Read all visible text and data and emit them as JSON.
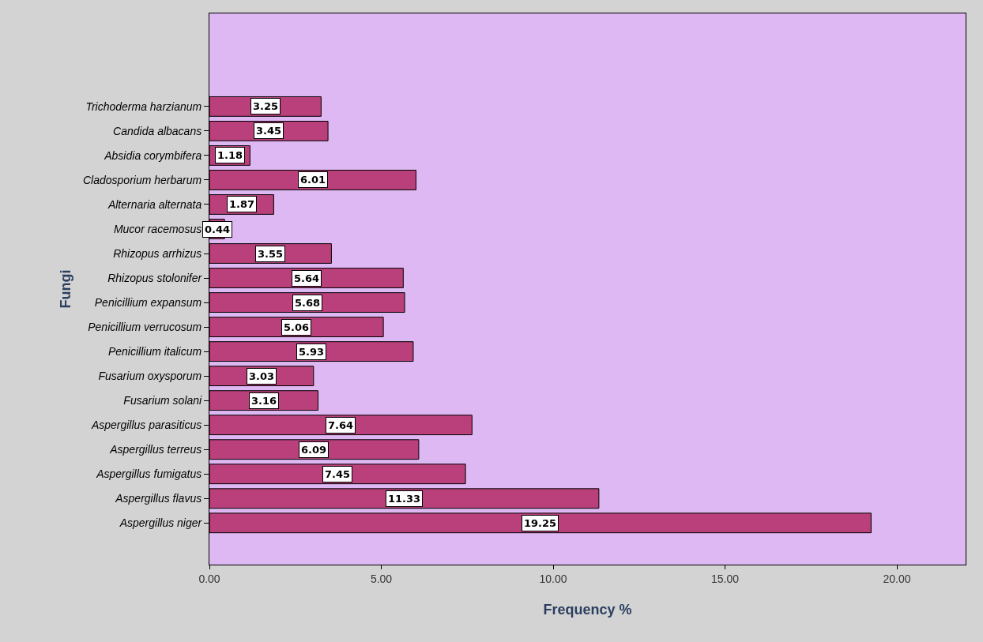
{
  "chart_data": {
    "type": "bar",
    "orientation": "horizontal",
    "xlabel": "Frequency %",
    "ylabel": "Fungi",
    "categories": [
      "Trichoderma harzianum",
      "Candida albacans",
      "Absidia corymbifera",
      "Cladosporium herbarum",
      "Alternaria alternata",
      "Mucor racemosus",
      "Rhizopus arrhizus",
      "Rhizopus stolonifer",
      "Penicillium expansum",
      "Penicillium verrucosum",
      "Penicillium italicum",
      "Fusarium oxysporum",
      "Fusarium solani",
      "Aspergillus parasiticus",
      "Aspergillus terreus",
      "Aspergillus fumigatus",
      "Aspergillus flavus",
      "Aspergillus niger"
    ],
    "values": [
      3.25,
      3.45,
      1.18,
      6.01,
      1.87,
      0.44,
      3.55,
      5.64,
      5.68,
      5.06,
      5.93,
      3.03,
      3.16,
      7.64,
      6.09,
      7.45,
      11.33,
      19.25
    ],
    "value_labels": [
      "3.25",
      "3.45",
      "1.18",
      "6.01",
      "1.87",
      "0.44",
      "3.55",
      "5.64",
      "5.68",
      "5.06",
      "5.93",
      "3.03",
      "3.16",
      "7.64",
      "6.09",
      "7.45",
      "11.33",
      "19.25"
    ],
    "color": "#b9407b",
    "xlim": [
      0,
      22
    ],
    "xticks": [
      {
        "value": 0,
        "label": "0.00"
      },
      {
        "value": 5,
        "label": "5.00"
      },
      {
        "value": 10,
        "label": "10.00"
      },
      {
        "value": 15,
        "label": "15.00"
      },
      {
        "value": 20,
        "label": "20.00"
      }
    ],
    "grid": false,
    "legend": false
  }
}
